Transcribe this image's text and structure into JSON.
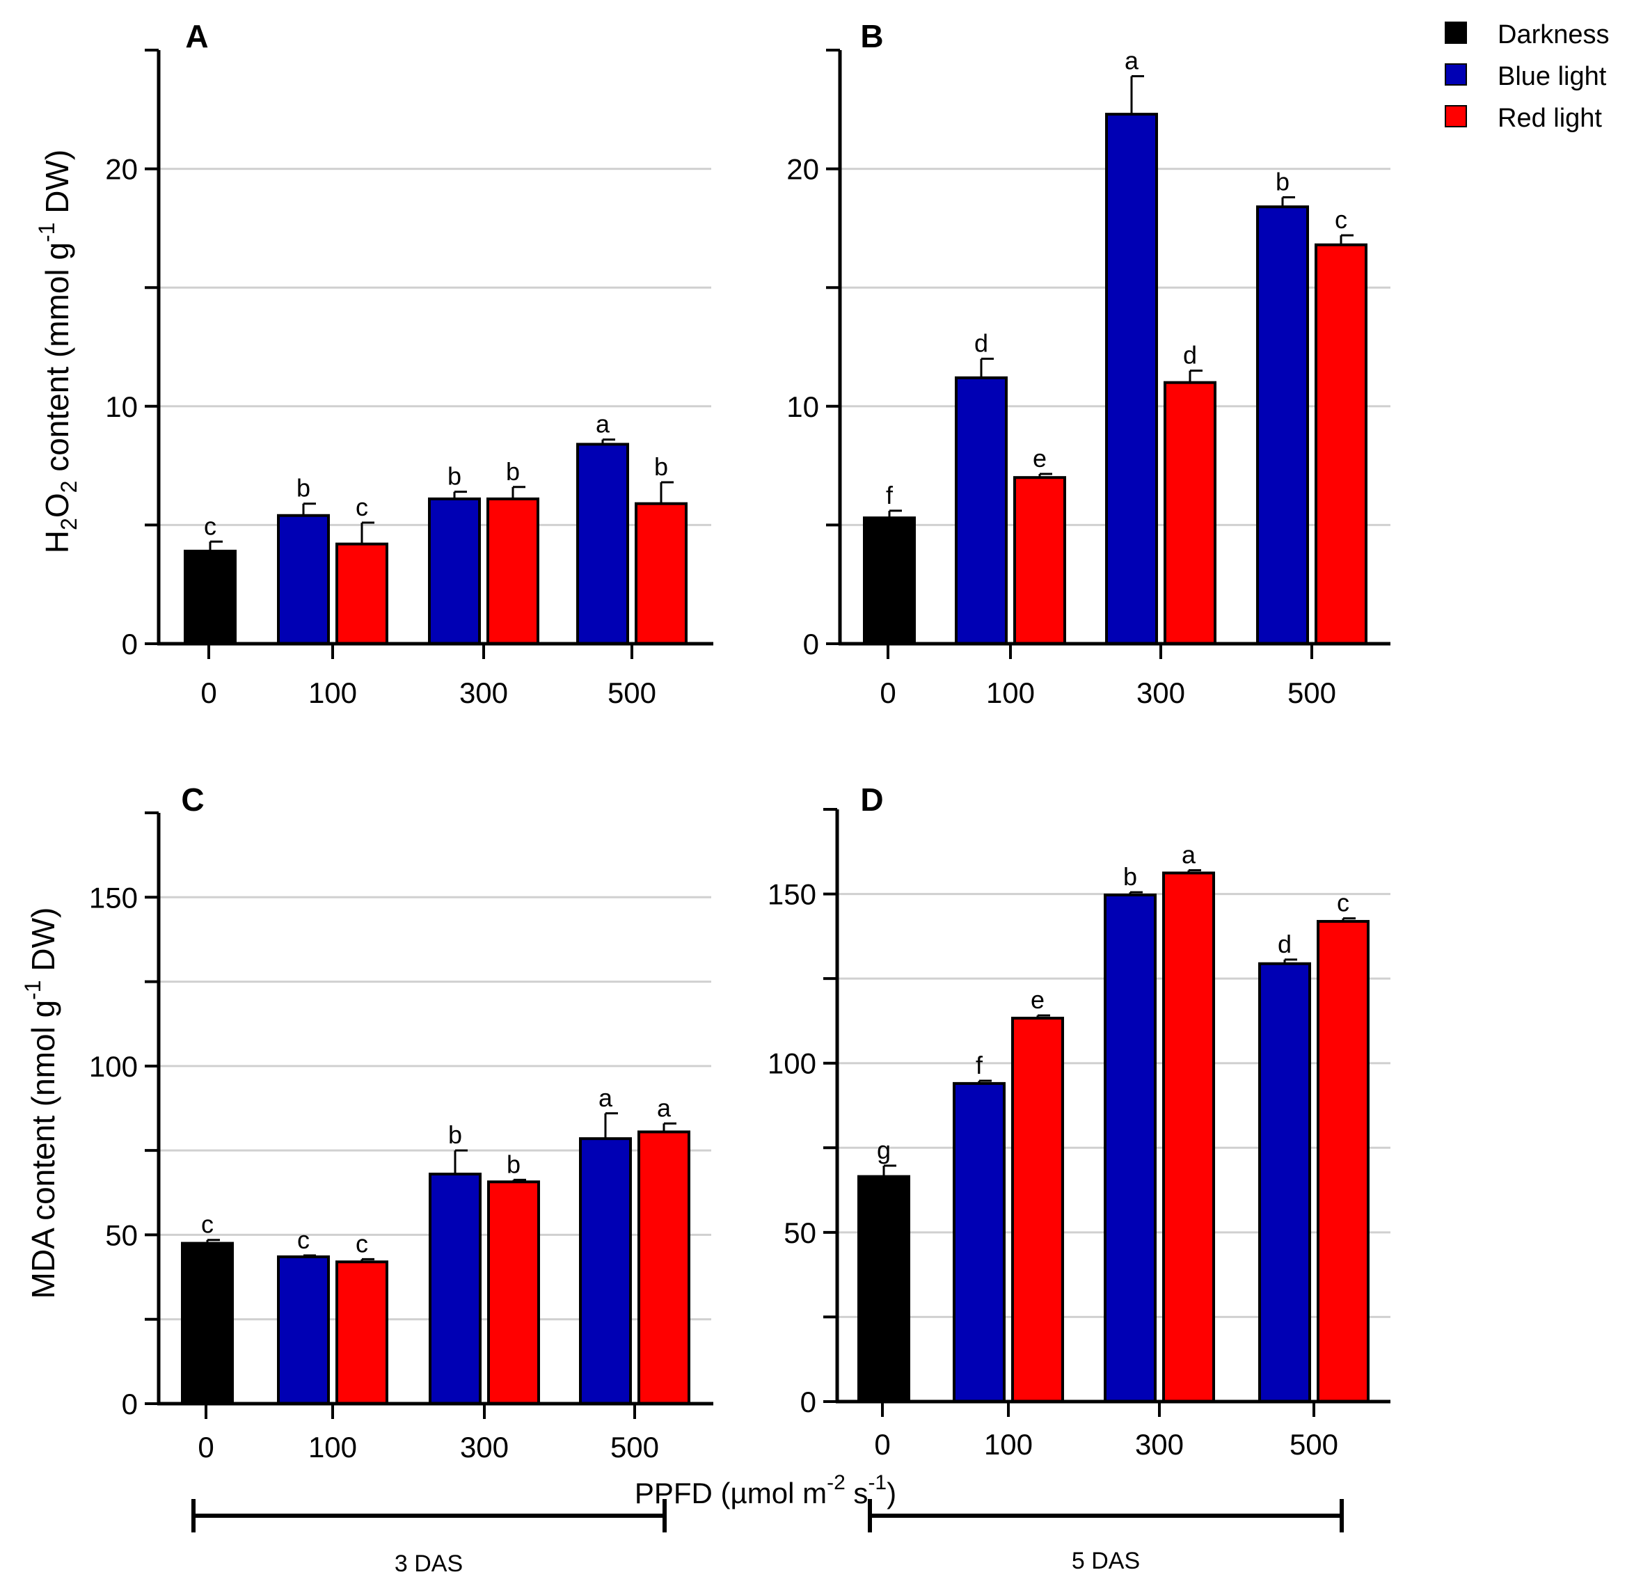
{
  "legend": {
    "items": [
      {
        "label": "Darkness",
        "color": "#000000"
      },
      {
        "label": "Blue light",
        "color": "#0000B4"
      },
      {
        "label": "Red light",
        "color": "#FF0000"
      }
    ]
  },
  "axis_titles": {
    "h2o2": {
      "pre": "H",
      "sub1": "2",
      "mid": "O",
      "sub2": "2",
      "post": " content (mmol g",
      "sup": "-1",
      "end": " DW)"
    },
    "mda": {
      "pre": "MDA content (nmol g",
      "sup": "-1",
      "end": " DW)"
    },
    "x": {
      "pre": "PPFD (µmol m",
      "sup1": "-2",
      "mid": " s",
      "sup2": "-1",
      "end": ")"
    }
  },
  "das_labels": [
    "3 DAS",
    "5 DAS"
  ],
  "colors": {
    "darkness": "#000000",
    "blue": "#0000B4",
    "red": "#FF0000",
    "grid": "#d0d0d0"
  },
  "chart_data": [
    {
      "panel": "A",
      "type": "bar",
      "categories": [
        "0",
        "100",
        "300",
        "500"
      ],
      "ylim": [
        0,
        25
      ],
      "yticks": [
        0,
        10,
        20
      ],
      "minor_ticks": [
        5,
        15,
        25
      ],
      "grid": true,
      "ylabel": "H2O2 content (mmol g-1 DW)",
      "bars": [
        {
          "category": "0",
          "series": "Darkness",
          "value": 3.9,
          "error": 0.4,
          "letter": "c"
        },
        {
          "category": "100",
          "series": "Blue light",
          "value": 5.4,
          "error": 0.5,
          "letter": "b"
        },
        {
          "category": "100",
          "series": "Red light",
          "value": 4.2,
          "error": 0.9,
          "letter": "c"
        },
        {
          "category": "300",
          "series": "Blue light",
          "value": 6.1,
          "error": 0.3,
          "letter": "b"
        },
        {
          "category": "300",
          "series": "Red light",
          "value": 6.1,
          "error": 0.5,
          "letter": "b"
        },
        {
          "category": "500",
          "series": "Blue light",
          "value": 8.4,
          "error": 0.2,
          "letter": "a"
        },
        {
          "category": "500",
          "series": "Red light",
          "value": 5.9,
          "error": 0.9,
          "letter": "b"
        }
      ]
    },
    {
      "panel": "B",
      "type": "bar",
      "categories": [
        "0",
        "100",
        "300",
        "500"
      ],
      "ylim": [
        0,
        25
      ],
      "yticks": [
        0,
        10,
        20
      ],
      "minor_ticks": [
        5,
        15,
        25
      ],
      "grid": true,
      "ylabel": "",
      "bars": [
        {
          "category": "0",
          "series": "Darkness",
          "value": 5.3,
          "error": 0.3,
          "letter": "f"
        },
        {
          "category": "100",
          "series": "Blue light",
          "value": 11.2,
          "error": 0.8,
          "letter": "d"
        },
        {
          "category": "100",
          "series": "Red light",
          "value": 7.0,
          "error": 0.15,
          "letter": "e"
        },
        {
          "category": "300",
          "series": "Blue light",
          "value": 22.3,
          "error": 1.6,
          "letter": "a"
        },
        {
          "category": "300",
          "series": "Red light",
          "value": 11.0,
          "error": 0.5,
          "letter": "d"
        },
        {
          "category": "500",
          "series": "Blue light",
          "value": 18.4,
          "error": 0.4,
          "letter": "b"
        },
        {
          "category": "500",
          "series": "Red light",
          "value": 16.8,
          "error": 0.4,
          "letter": "c"
        }
      ]
    },
    {
      "panel": "C",
      "type": "bar",
      "categories": [
        "0",
        "100",
        "300",
        "500"
      ],
      "ylim": [
        0,
        175
      ],
      "yticks": [
        0,
        50,
        100,
        150
      ],
      "minor_ticks": [
        25,
        75,
        125,
        175
      ],
      "grid": true,
      "ylabel": "MDA content (nmol g-1 DW)",
      "bars": [
        {
          "category": "0",
          "series": "Darkness",
          "value": 47.5,
          "error": 1.0,
          "letter": "c"
        },
        {
          "category": "100",
          "series": "Blue light",
          "value": 43.5,
          "error": 0.4,
          "letter": "c"
        },
        {
          "category": "100",
          "series": "Red light",
          "value": 42.0,
          "error": 0.8,
          "letter": "c"
        },
        {
          "category": "300",
          "series": "Blue light",
          "value": 68.0,
          "error": 7.0,
          "letter": "b"
        },
        {
          "category": "300",
          "series": "Red light",
          "value": 65.7,
          "error": 0.6,
          "letter": "b"
        },
        {
          "category": "500",
          "series": "Blue light",
          "value": 78.5,
          "error": 7.5,
          "letter": "a"
        },
        {
          "category": "500",
          "series": "Red light",
          "value": 80.5,
          "error": 2.5,
          "letter": "a"
        }
      ]
    },
    {
      "panel": "D",
      "type": "bar",
      "categories": [
        "0",
        "100",
        "300",
        "500"
      ],
      "ylim": [
        0,
        175
      ],
      "yticks": [
        0,
        50,
        100,
        150
      ],
      "minor_ticks": [
        25,
        75,
        125,
        175
      ],
      "grid": true,
      "ylabel": "",
      "bars": [
        {
          "category": "0",
          "series": "Darkness",
          "value": 66.5,
          "error": 3.2,
          "letter": "g"
        },
        {
          "category": "100",
          "series": "Blue light",
          "value": 94.0,
          "error": 0.8,
          "letter": "f"
        },
        {
          "category": "100",
          "series": "Red light",
          "value": 113.3,
          "error": 0.8,
          "letter": "e"
        },
        {
          "category": "300",
          "series": "Blue light",
          "value": 149.7,
          "error": 0.8,
          "letter": "b"
        },
        {
          "category": "300",
          "series": "Red light",
          "value": 156.2,
          "error": 0.8,
          "letter": "a"
        },
        {
          "category": "500",
          "series": "Blue light",
          "value": 129.4,
          "error": 1.2,
          "letter": "d"
        },
        {
          "category": "500",
          "series": "Red light",
          "value": 141.9,
          "error": 0.9,
          "letter": "c"
        }
      ]
    }
  ]
}
